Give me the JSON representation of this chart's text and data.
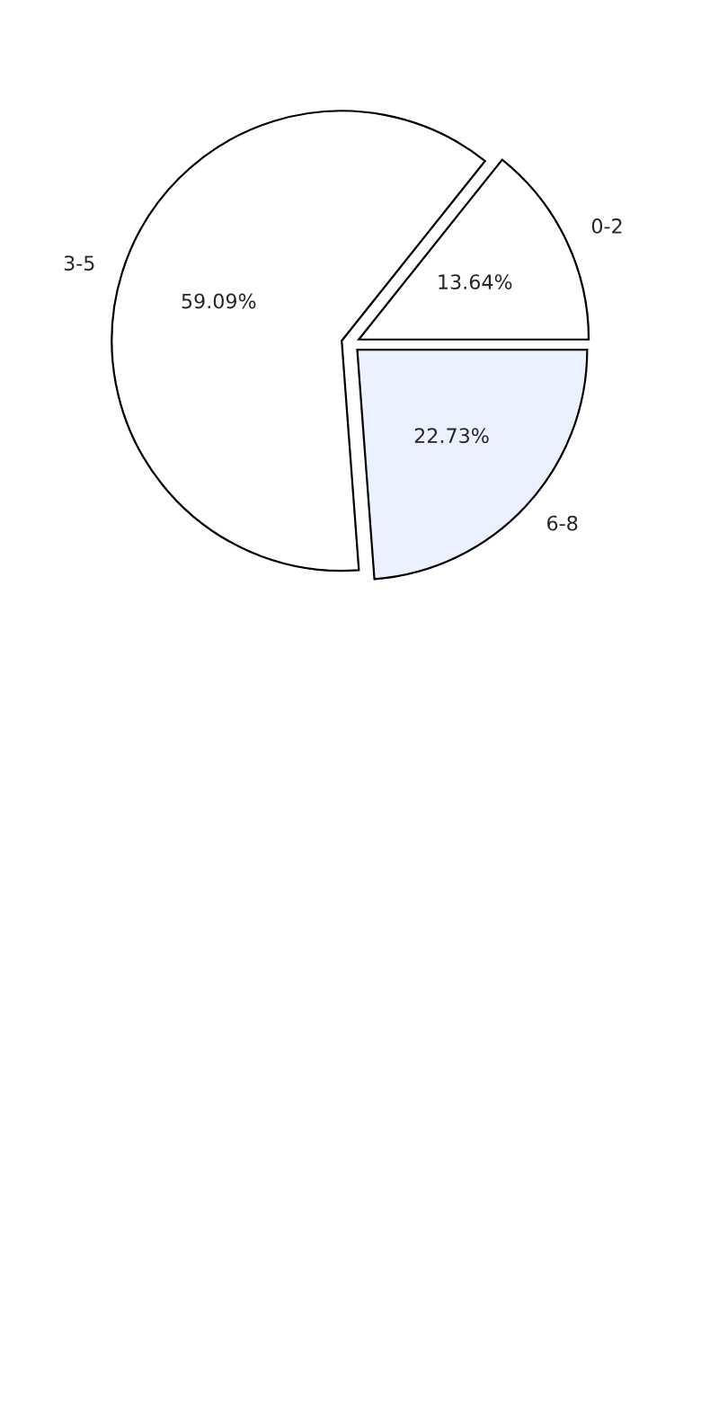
{
  "chart_data": {
    "type": "pie",
    "categories": [
      "0-2",
      "3-5",
      "6-8"
    ],
    "values": [
      13.64,
      59.09,
      22.73
    ],
    "value_labels": [
      "13.64%",
      "59.09%",
      "22.73%"
    ],
    "colors": [
      "#ffffff",
      "#ffffff",
      "#ebf1fe"
    ],
    "legend": false
  }
}
